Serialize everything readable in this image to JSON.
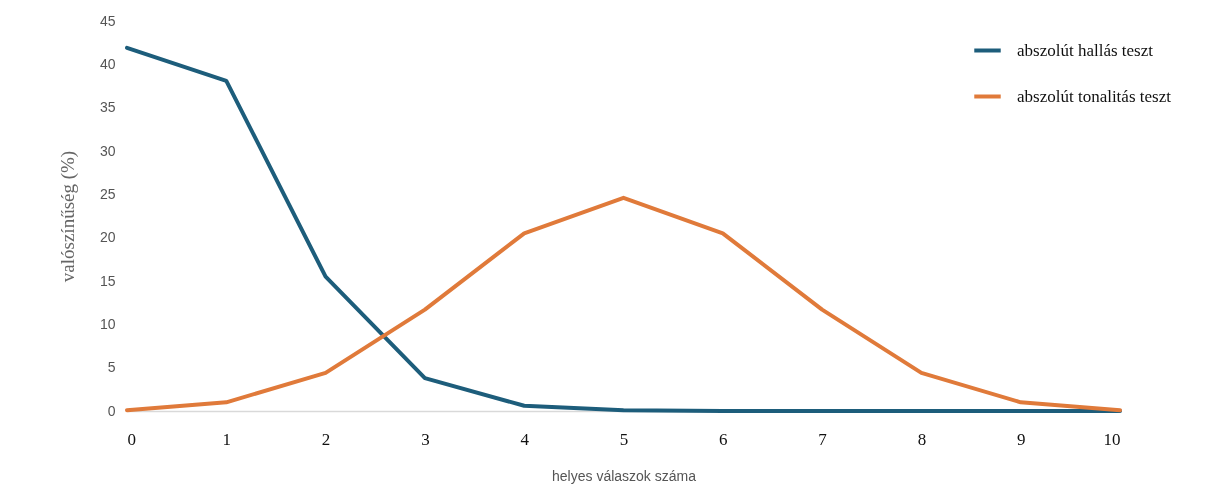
{
  "chart_data": {
    "type": "line",
    "xlabel": "helyes válaszok száma",
    "ylabel": "valószínűség (%)",
    "x": [
      0,
      1,
      2,
      3,
      4,
      5,
      6,
      7,
      8,
      9,
      10
    ],
    "xlim": [
      0,
      10
    ],
    "xticks": [
      0,
      1,
      2,
      3,
      4,
      5,
      6,
      7,
      8,
      9,
      10
    ],
    "ylim": [
      0,
      45
    ],
    "yticks": [
      0,
      5,
      10,
      15,
      20,
      25,
      30,
      35,
      40,
      45
    ],
    "grid": false,
    "legend": "top right",
    "marker": "none",
    "line_style": "solid",
    "series": [
      {
        "name": "abszolút hallás teszt",
        "color": "#1d5d7b",
        "values": [
          41.9,
          38.1,
          15.5,
          3.8,
          0.6,
          0.1,
          0,
          0,
          0,
          0,
          0
        ]
      },
      {
        "name": "abszolút tonalitás teszt",
        "color": "#e07a3a",
        "values": [
          0.1,
          1,
          4.4,
          11.7,
          20.5,
          24.6,
          20.5,
          11.7,
          4.4,
          1,
          0.1
        ]
      }
    ]
  }
}
